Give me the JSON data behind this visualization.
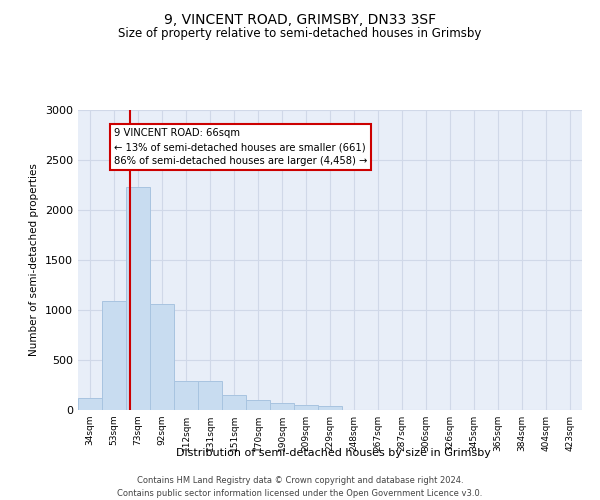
{
  "title": "9, VINCENT ROAD, GRIMSBY, DN33 3SF",
  "subtitle": "Size of property relative to semi-detached houses in Grimsby",
  "xlabel": "Distribution of semi-detached houses by size in Grimsby",
  "ylabel": "Number of semi-detached properties",
  "footer_line1": "Contains HM Land Registry data © Crown copyright and database right 2024.",
  "footer_line2": "Contains public sector information licensed under the Open Government Licence v3.0.",
  "annotation_title": "9 VINCENT ROAD: 66sqm",
  "annotation_line1": "← 13% of semi-detached houses are smaller (661)",
  "annotation_line2": "86% of semi-detached houses are larger (4,458) →",
  "property_size": 66,
  "bin_edges": [
    24.5,
    43.5,
    62.5,
    81.5,
    100.5,
    119.5,
    138.5,
    157.5,
    176.5,
    195.5,
    214.5,
    233.5,
    252.5,
    271.5,
    290.5,
    309.5,
    328.5,
    347.5,
    366.5,
    385.5,
    404.5,
    423.5
  ],
  "bin_labels": [
    "34sqm",
    "53sqm",
    "73sqm",
    "92sqm",
    "112sqm",
    "131sqm",
    "151sqm",
    "170sqm",
    "190sqm",
    "209sqm",
    "229sqm",
    "248sqm",
    "267sqm",
    "287sqm",
    "306sqm",
    "326sqm",
    "345sqm",
    "365sqm",
    "384sqm",
    "404sqm",
    "423sqm"
  ],
  "counts": [
    120,
    1090,
    2230,
    1060,
    295,
    295,
    155,
    100,
    70,
    55,
    45,
    0,
    0,
    0,
    0,
    0,
    0,
    0,
    0,
    0,
    0
  ],
  "bar_color": "#c8dcf0",
  "bar_edge_color": "#a8c4e0",
  "vline_color": "#cc0000",
  "vline_x": 66,
  "annotation_box_color": "#ffffff",
  "annotation_box_edge": "#cc0000",
  "ylim": [
    0,
    3000
  ],
  "yticks": [
    0,
    500,
    1000,
    1500,
    2000,
    2500,
    3000
  ],
  "grid_color": "#d0d8e8",
  "background_color": "#e8eef8"
}
